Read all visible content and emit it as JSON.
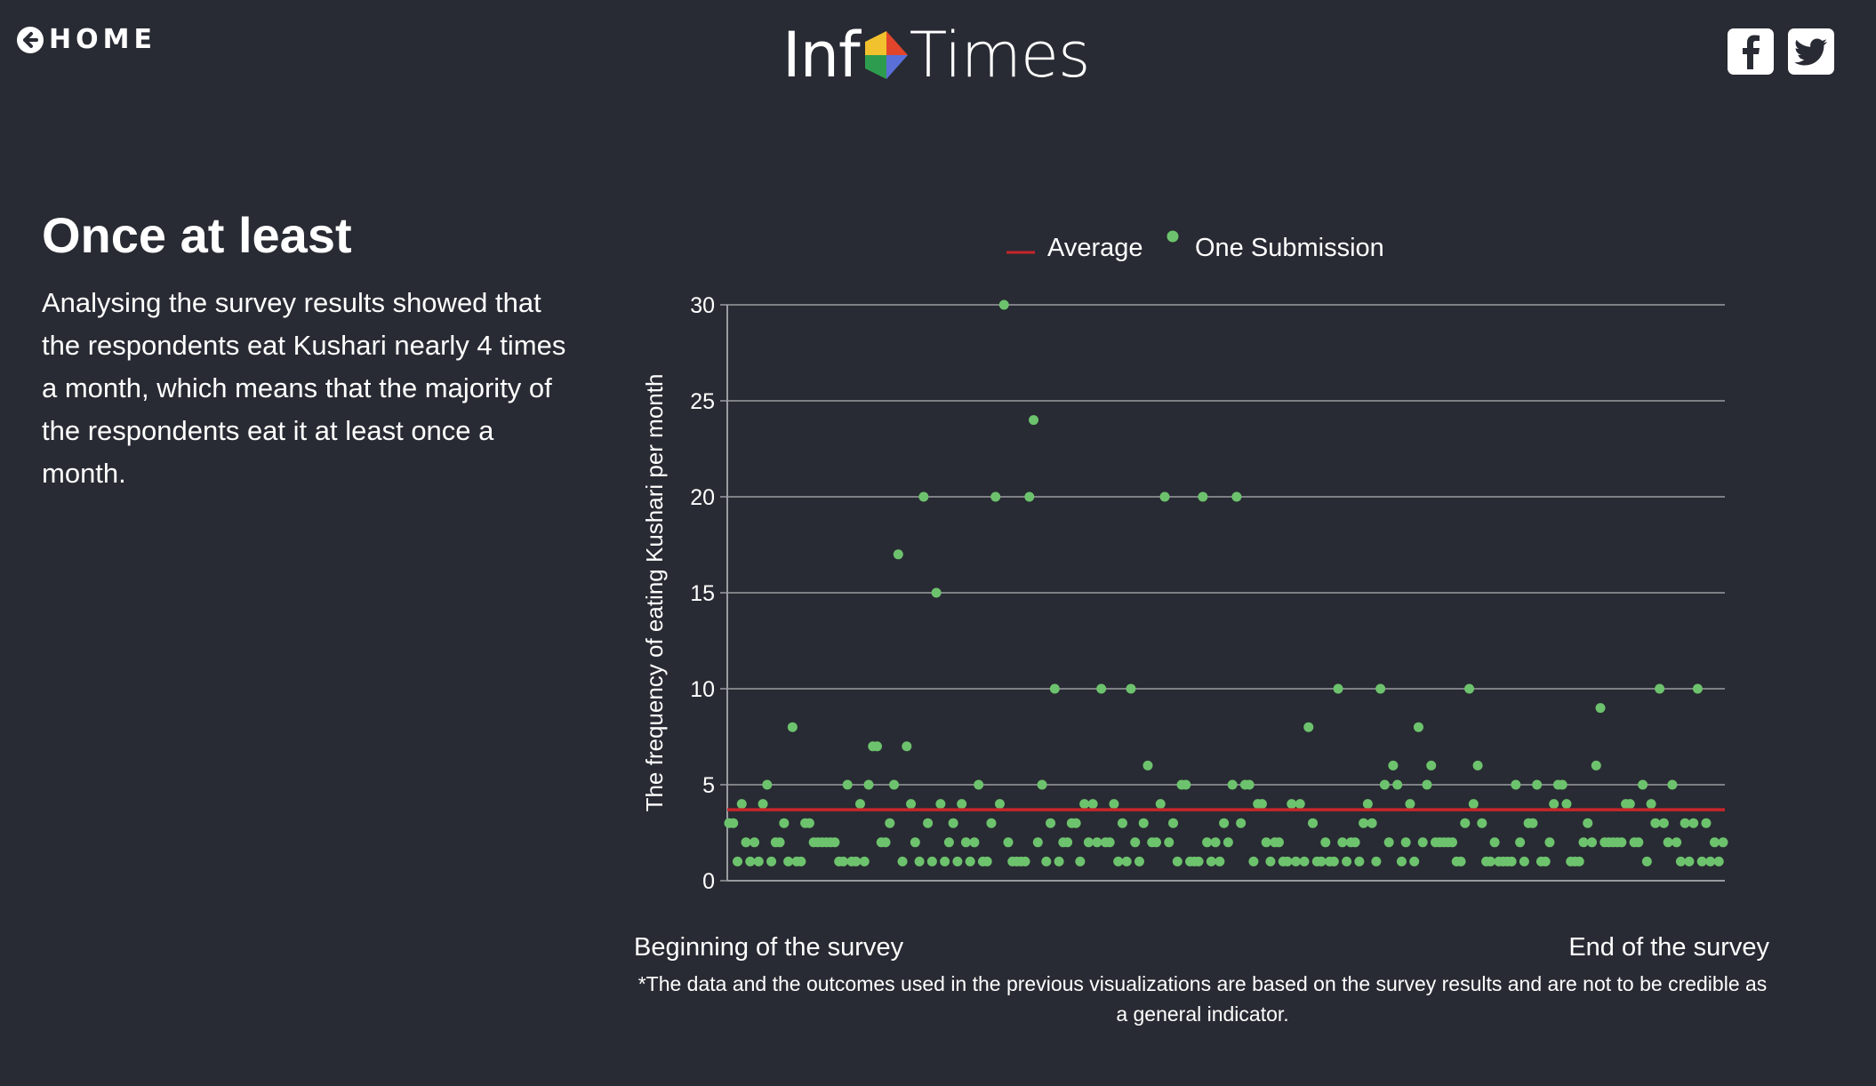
{
  "nav": {
    "home_label": "HOME"
  },
  "logo": {
    "part1": "Inf",
    "part2": "Times"
  },
  "social": {
    "facebook_icon": "facebook-icon",
    "twitter_icon": "twitter-icon"
  },
  "section": {
    "title": "Once at least",
    "text": "Analysing the survey results showed that the respondents eat Kushari nearly 4 times a month, which means that the majority of the respondents eat it at least once a month."
  },
  "chart_data": {
    "type": "scatter",
    "legend": {
      "placement": "top-center",
      "average_label": "Average",
      "points_label": "One Submission"
    },
    "ylabel": "The frequency of eating Kushari per month",
    "xlabel_start": "Beginning of the survey",
    "xlabel_end": "End of the survey",
    "ylim": [
      0,
      30
    ],
    "yticks": [
      0,
      5,
      10,
      15,
      20,
      25,
      30
    ],
    "grid": true,
    "average": 3.7,
    "colors": {
      "points": "#6dc36d",
      "average": "#c8252a",
      "grid": "#9a9ca2"
    },
    "series": [
      {
        "name": "One Submission",
        "values": [
          3,
          3,
          1,
          4,
          2,
          1,
          2,
          1,
          4,
          5,
          1,
          2,
          2,
          3,
          1,
          8,
          1,
          1,
          3,
          3,
          2,
          2,
          2,
          2,
          2,
          2,
          1,
          1,
          5,
          1,
          1,
          4,
          1,
          5,
          7,
          7,
          2,
          2,
          3,
          5,
          17,
          1,
          7,
          4,
          2,
          1,
          20,
          3,
          1,
          15,
          4,
          1,
          2,
          3,
          1,
          4,
          2,
          1,
          2,
          5,
          1,
          1,
          3,
          20,
          4,
          30,
          2,
          1,
          1,
          1,
          1,
          20,
          24,
          2,
          5,
          1,
          3,
          10,
          1,
          2,
          2,
          3,
          3,
          1,
          4,
          2,
          4,
          2,
          10,
          2,
          2,
          4,
          1,
          3,
          1,
          10,
          2,
          1,
          3,
          6,
          2,
          2,
          4,
          20,
          2,
          3,
          1,
          5,
          5,
          1,
          1,
          1,
          20,
          2,
          1,
          2,
          1,
          3,
          2,
          5,
          20,
          3,
          5,
          5,
          1,
          4,
          4,
          2,
          1,
          2,
          2,
          1,
          1,
          4,
          1,
          4,
          1,
          8,
          3,
          1,
          1,
          2,
          1,
          1,
          10,
          2,
          1,
          2,
          2,
          1,
          3,
          4,
          3,
          1,
          10,
          5,
          2,
          6,
          5,
          1,
          2,
          4,
          1,
          8,
          2,
          5,
          6,
          2,
          2,
          2,
          2,
          2,
          1,
          1,
          3,
          10,
          4,
          6,
          3,
          1,
          1,
          2,
          1,
          1,
          1,
          1,
          5,
          2,
          1,
          3,
          3,
          5,
          1,
          1,
          2,
          4,
          5,
          5,
          4,
          1,
          1,
          1,
          2,
          3,
          2,
          6,
          9,
          2,
          2,
          2,
          2,
          2,
          4,
          4,
          2,
          2,
          5,
          1,
          4,
          3,
          10,
          3,
          2,
          5,
          2,
          1,
          3,
          1,
          3,
          10,
          1,
          3,
          1,
          2,
          1,
          2
        ]
      }
    ]
  },
  "footnote": "*The data and the outcomes used in the previous visualizations are based on the survey results and are not to be credible as a general indicator."
}
